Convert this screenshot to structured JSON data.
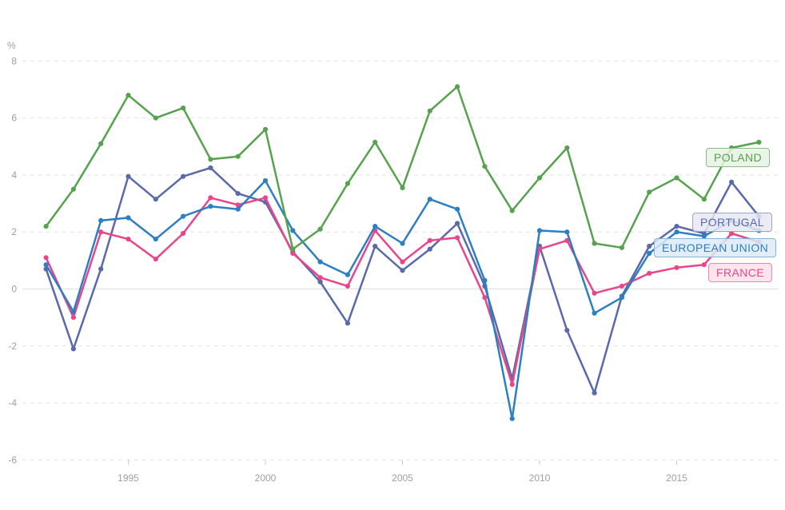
{
  "chart_data": {
    "type": "line",
    "title": "",
    "y_axis_title": "%",
    "ylim": [
      -6,
      8
    ],
    "y_ticks": [
      8,
      6,
      4,
      2,
      0,
      -2,
      -4,
      -6
    ],
    "x_ticks": [
      1995,
      2000,
      2005,
      2010,
      2015
    ],
    "x": [
      1992,
      1993,
      1994,
      1995,
      1996,
      1997,
      1998,
      1999,
      2000,
      2001,
      2002,
      2003,
      2004,
      2005,
      2006,
      2007,
      2008,
      2009,
      2010,
      2011,
      2012,
      2013,
      2014,
      2015,
      2016,
      2017,
      2018
    ],
    "grid": "dashed-horizontal",
    "legend_position": "inline-right-labels",
    "series": [
      {
        "name": "PORTUGAL",
        "color": "#5969aa",
        "label_bg": "#e7e8f3",
        "label_border": "#9aa4cd",
        "values": [
          0.7,
          -2.1,
          0.7,
          3.95,
          3.15,
          3.95,
          4.25,
          3.35,
          3.05,
          1.3,
          0.25,
          -1.2,
          1.5,
          0.65,
          1.4,
          2.3,
          0.1,
          -3.15,
          1.5,
          -1.45,
          -3.65,
          -0.25,
          1.5,
          2.2,
          1.95,
          3.75,
          2.55
        ]
      },
      {
        "name": "FRANCE",
        "color": "#e8458a",
        "label_bg": "#fadfe9",
        "label_border": "#eb8ab4",
        "values": [
          1.1,
          -1.0,
          2.0,
          1.75,
          1.05,
          1.95,
          3.2,
          2.95,
          3.2,
          1.25,
          0.4,
          0.1,
          2.05,
          0.95,
          1.7,
          1.8,
          -0.3,
          -3.35,
          1.4,
          1.7,
          -0.15,
          0.1,
          0.55,
          0.75,
          0.85,
          1.95,
          1.65
        ]
      },
      {
        "name": "EUROPEAN UNION",
        "color": "#2c7fc2",
        "label_bg": "#ddeaf7",
        "label_border": "#85b3da",
        "values": [
          0.85,
          -0.8,
          2.4,
          2.5,
          1.75,
          2.55,
          2.9,
          2.8,
          3.8,
          2.05,
          0.95,
          0.5,
          2.2,
          1.6,
          3.15,
          2.8,
          0.3,
          -4.55,
          2.05,
          2.0,
          -0.85,
          -0.3,
          1.25,
          2.0,
          1.85,
          2.4,
          2.05
        ]
      },
      {
        "name": "POLAND",
        "color": "#57a24e",
        "label_bg": "#e7f2e4",
        "label_border": "#8abc84",
        "values": [
          2.2,
          3.5,
          5.1,
          6.8,
          6.0,
          6.35,
          4.55,
          4.65,
          5.6,
          1.4,
          2.1,
          3.7,
          5.15,
          3.55,
          6.25,
          7.1,
          4.3,
          2.75,
          3.9,
          4.95,
          1.6,
          1.45,
          3.4,
          3.9,
          3.15,
          4.95,
          5.15
        ]
      }
    ],
    "style": {
      "grid_color": "#e2e2e2",
      "zero_line_color": "#d9e1e7",
      "tick_color": "#c9c9c9",
      "axis_text_color": "#9aa0a6",
      "background": "#ffffff"
    }
  },
  "legend": {
    "poland": "POLAND",
    "portugal": "PORTUGAL",
    "european_union": "EUROPEAN UNION",
    "france": "FRANCE"
  }
}
